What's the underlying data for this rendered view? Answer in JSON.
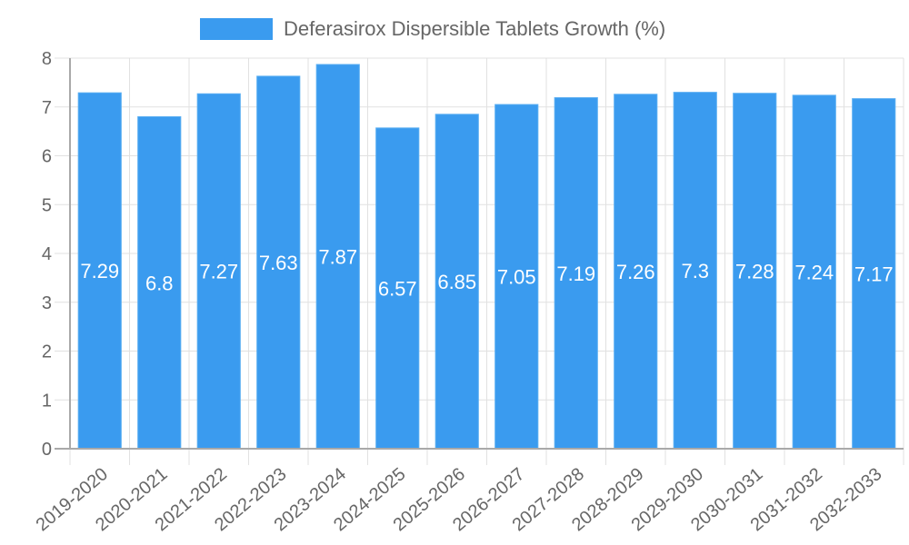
{
  "legend": {
    "label": "Deferasirox Dispersible Tablets Growth (%)",
    "color": "#3a9bef"
  },
  "colors": {
    "bar": "#3a9bef",
    "bar_border": "#5aaef2",
    "grid": "#e1e1e1",
    "axis": "#a9a9a9",
    "text": "#666666",
    "label": "#ffffff"
  },
  "chart_data": {
    "type": "bar",
    "title": "",
    "xlabel": "",
    "ylabel": "",
    "categories": [
      "2019-2020",
      "2020-2021",
      "2021-2022",
      "2022-2023",
      "2023-2024",
      "2024-2025",
      "2025-2026",
      "2026-2027",
      "2027-2028",
      "2028-2029",
      "2029-2030",
      "2030-2031",
      "2031-2032",
      "2032-2033"
    ],
    "series": [
      {
        "name": "Deferasirox Dispersible Tablets Growth (%)",
        "values": [
          7.29,
          6.8,
          7.27,
          7.63,
          7.87,
          6.57,
          6.85,
          7.05,
          7.19,
          7.26,
          7.3,
          7.28,
          7.24,
          7.17
        ]
      }
    ],
    "values": [
      7.29,
      6.8,
      7.27,
      7.63,
      7.87,
      6.57,
      6.85,
      7.05,
      7.19,
      7.26,
      7.3,
      7.28,
      7.24,
      7.17
    ],
    "ylim": [
      0,
      8
    ],
    "yticks": [
      0,
      1,
      2,
      3,
      4,
      5,
      6,
      7,
      8
    ],
    "grid": true,
    "legend_position": "top",
    "data_labels": true
  }
}
